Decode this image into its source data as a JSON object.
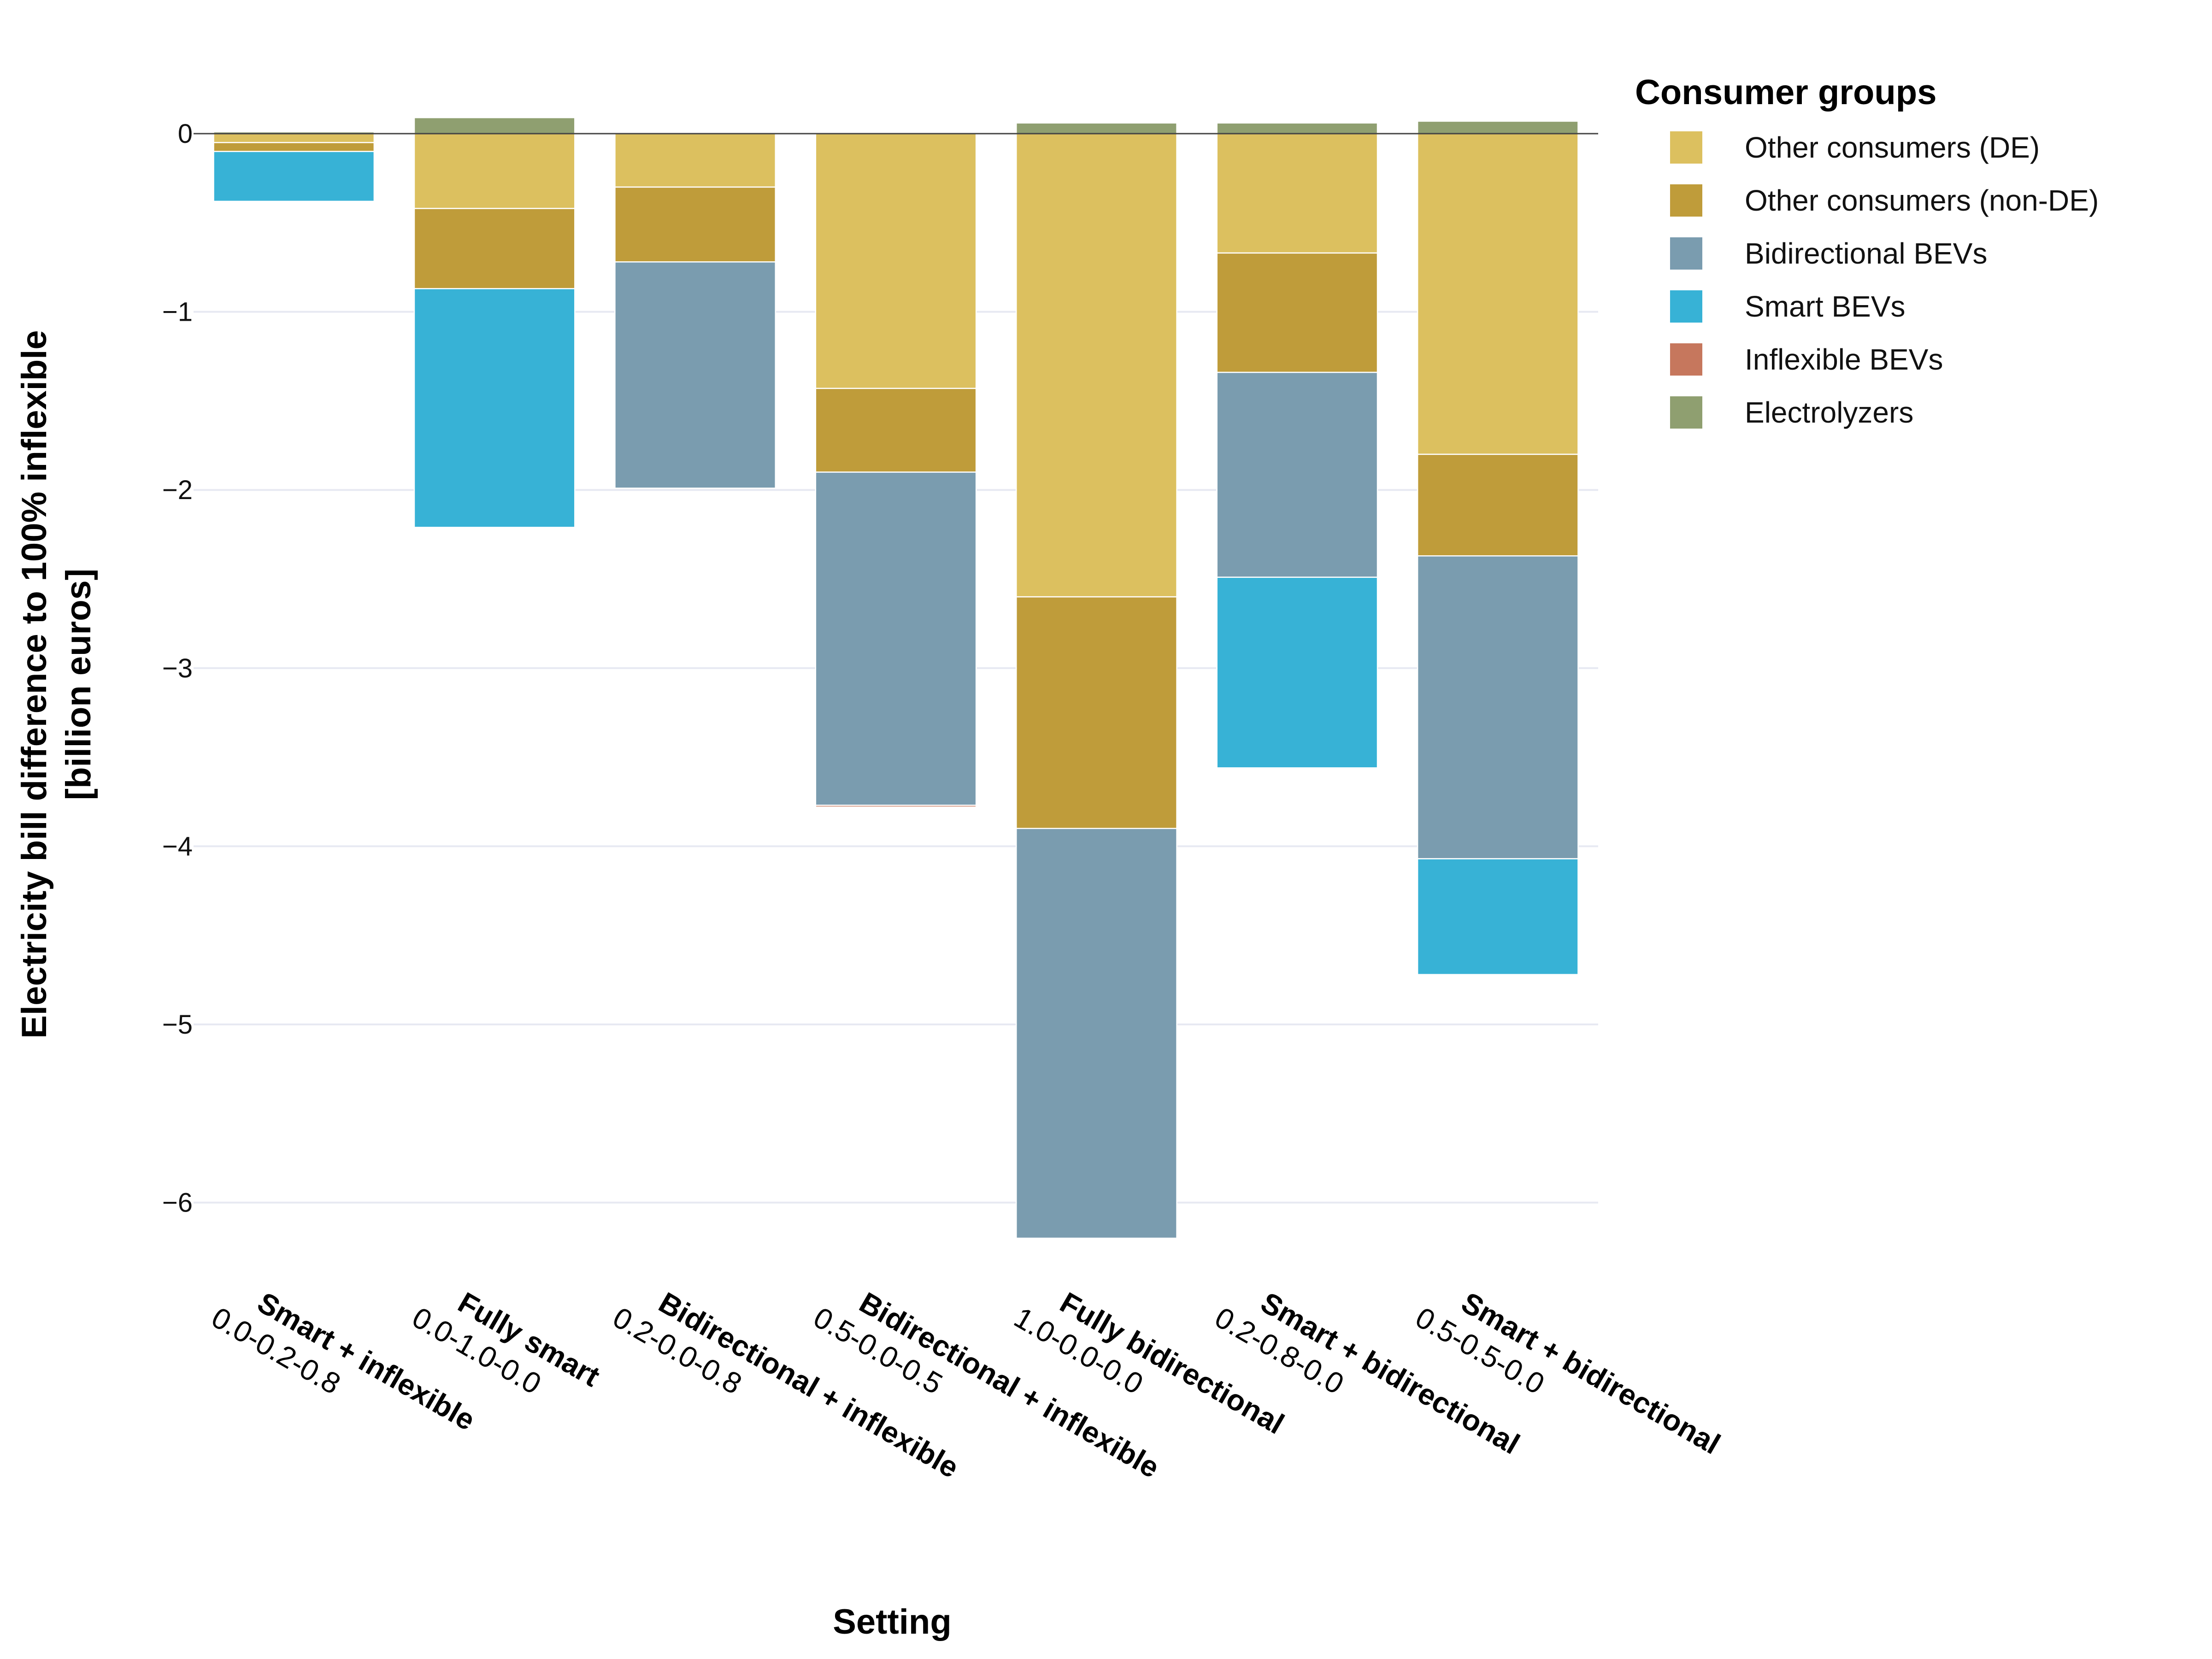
{
  "chart_data": {
    "type": "bar",
    "stacked": true,
    "ylabel_lines": [
      "Electricity bill difference to 100% inflexible",
      "[billion euros]"
    ],
    "xlabel": "Setting",
    "ylim": [
      -6.4,
      0.2
    ],
    "yticks": [
      0,
      -1,
      -2,
      -3,
      -4,
      -5,
      -6
    ],
    "ytick_labels": [
      "0",
      "−1",
      "−2",
      "−3",
      "−4",
      "−5",
      "−6"
    ],
    "categories": [
      {
        "name": "Smart + inflexible",
        "code": "0.0-0.2-0.8"
      },
      {
        "name": "Fully smart",
        "code": "0.0-1.0-0.0"
      },
      {
        "name": "Bidirectional + inflexible",
        "code": "0.2-0.0-0.8"
      },
      {
        "name": "Bidirectional + inflexible",
        "code": "0.5-0.0-0.5"
      },
      {
        "name": "Fully bidirectional",
        "code": "1.0-0.0-0.0"
      },
      {
        "name": "Smart + bidirectional",
        "code": "0.2-0.8-0.0"
      },
      {
        "name": "Smart + bidirectional",
        "code": "0.5-0.5-0.0"
      }
    ],
    "legend_title": "Consumer groups",
    "series": [
      {
        "name": "Other consumers (DE)",
        "color": "#dcc05f",
        "values": [
          -0.05,
          -0.42,
          -0.3,
          -1.43,
          -2.6,
          -0.67,
          -1.8
        ]
      },
      {
        "name": "Other consumers (non-DE)",
        "color": "#bf9c3a",
        "values": [
          -0.05,
          -0.45,
          -0.42,
          -0.47,
          -1.3,
          -0.67,
          -0.57
        ]
      },
      {
        "name": "Bidirectional BEVs",
        "color": "#7a9caf",
        "values": [
          0,
          0,
          -1.27,
          -1.87,
          -2.3,
          -1.15,
          -1.7
        ]
      },
      {
        "name": "Smart BEVs",
        "color": "#37b2d6",
        "values": [
          -0.28,
          -1.34,
          0,
          0,
          0,
          -1.07,
          -0.65
        ]
      },
      {
        "name": "Inflexible BEVs",
        "color": "#c6775d",
        "values": [
          0,
          0,
          0,
          -0.01,
          0,
          0,
          0
        ]
      },
      {
        "name": "Electrolyzers",
        "color": "#8f9f70",
        "values": [
          0.01,
          0.09,
          0,
          0,
          0.06,
          0.06,
          0.07
        ]
      }
    ]
  }
}
